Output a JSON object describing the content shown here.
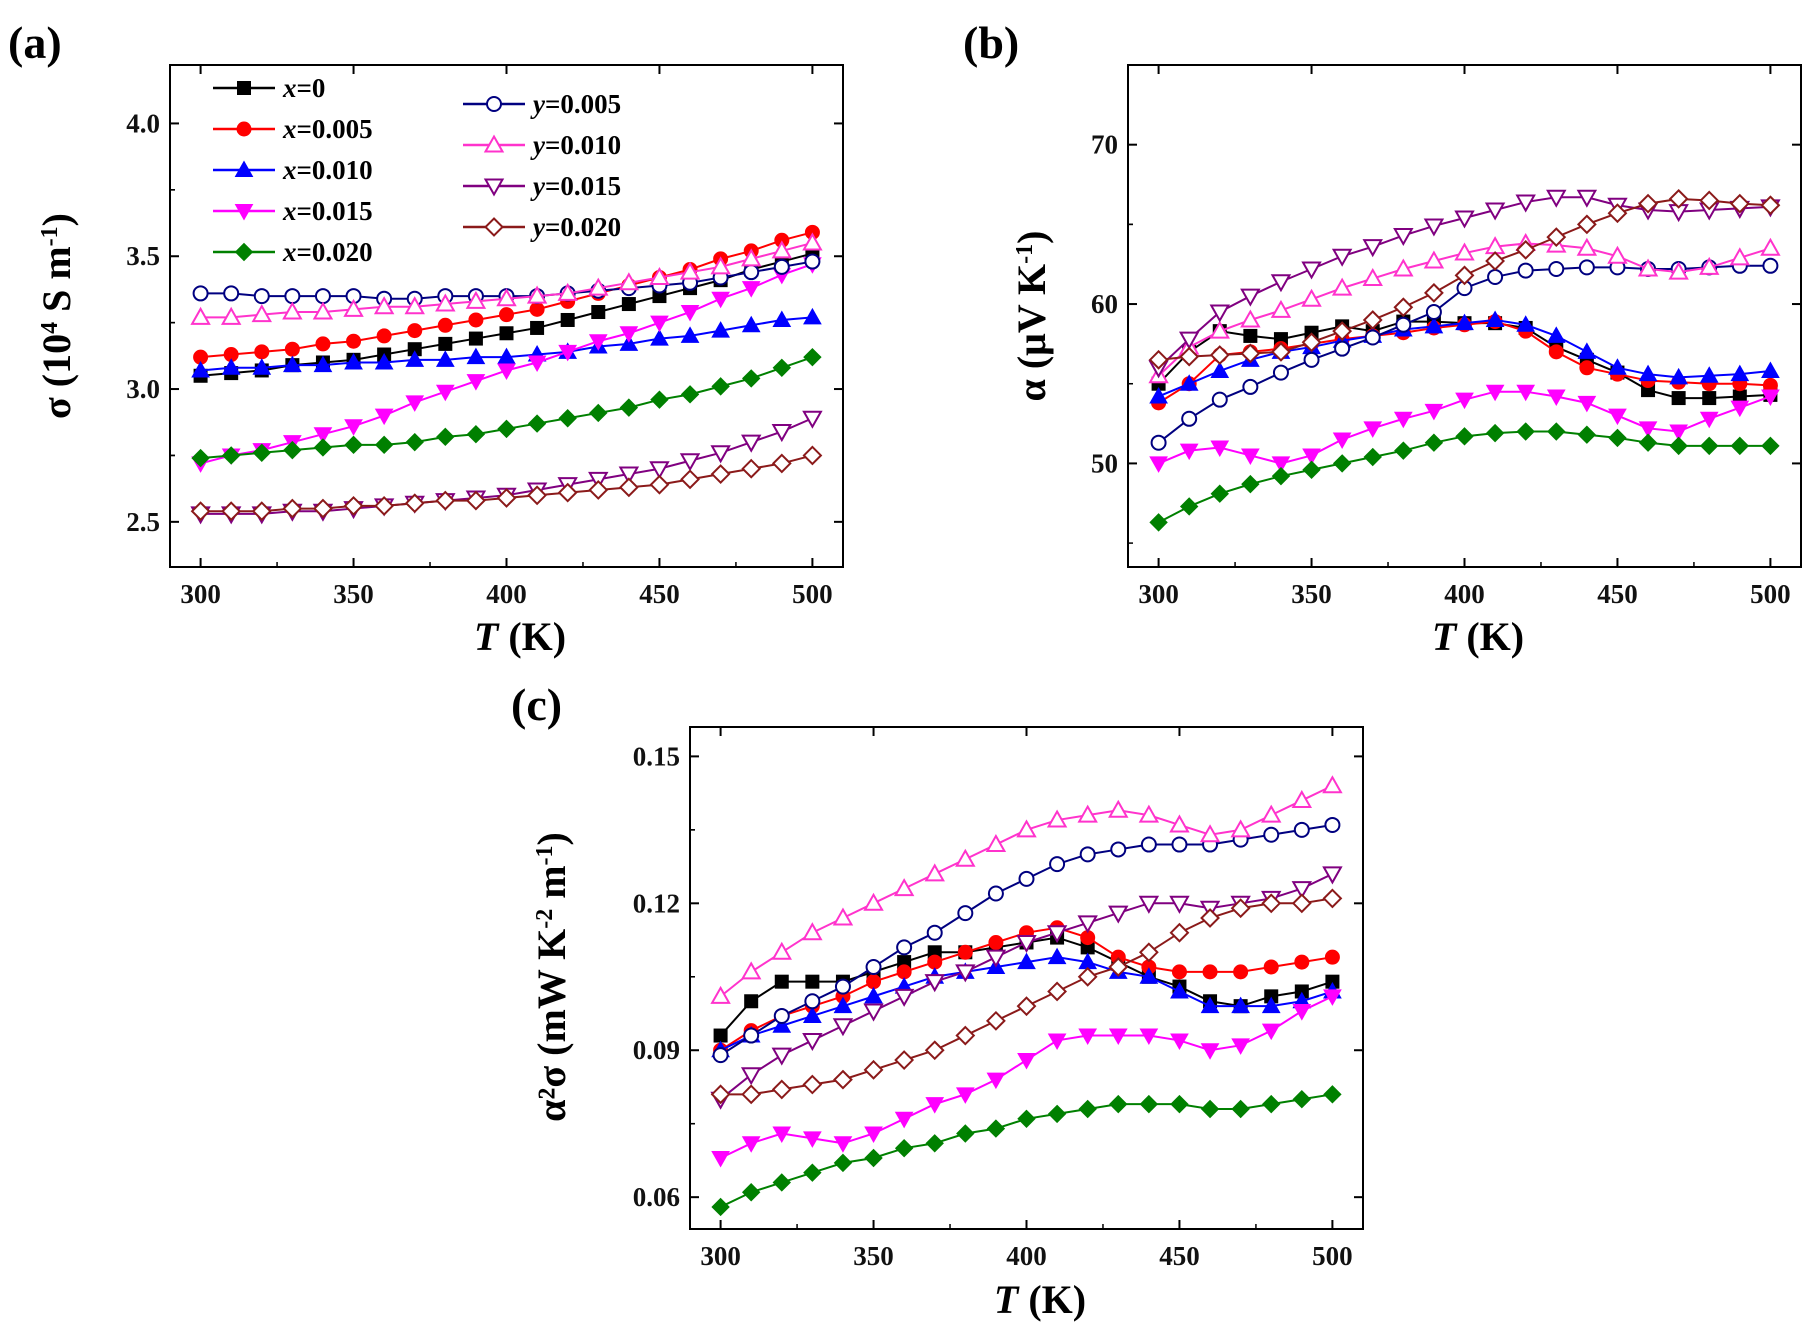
{
  "series_styles": [
    {
      "id": "x0",
      "label": "x=0",
      "var": "x",
      "num": "=0",
      "color": "#000000",
      "marker": "square",
      "filled": true
    },
    {
      "id": "x005",
      "label": "x=0.005",
      "var": "x",
      "num": "=0.005",
      "color": "#ff0000",
      "marker": "circle",
      "filled": true
    },
    {
      "id": "x010",
      "label": "x=0.010",
      "var": "x",
      "num": "=0.010",
      "color": "#0000ff",
      "marker": "triup",
      "filled": true
    },
    {
      "id": "x015",
      "label": "x=0.015",
      "var": "x",
      "num": "=0.015",
      "color": "#ff00ff",
      "marker": "tridown",
      "filled": true
    },
    {
      "id": "x020",
      "label": "x=0.020",
      "var": "x",
      "num": "=0.020",
      "color": "#008000",
      "marker": "diamond",
      "filled": true
    },
    {
      "id": "y005",
      "label": "y=0.005",
      "var": "y",
      "num": "=0.005",
      "color": "#000080",
      "marker": "circle",
      "filled": false
    },
    {
      "id": "y010",
      "label": "y=0.010",
      "var": "y",
      "num": "=0.010",
      "color": "#ff33cc",
      "marker": "triup",
      "filled": false
    },
    {
      "id": "y015",
      "label": "y=0.015",
      "var": "y",
      "num": "=0.015",
      "color": "#800080",
      "marker": "tridown",
      "filled": false
    },
    {
      "id": "y020",
      "label": "y=0.020",
      "var": "y",
      "num": "=0.020",
      "color": "#8b1a1a",
      "marker": "diamond",
      "filled": false
    }
  ],
  "chart_data": [
    {
      "panel": "(a)",
      "type": "line",
      "xlabel": "T (K)",
      "ylabel": "σ (10^4 S m^-1)",
      "xlim": [
        290,
        510
      ],
      "ylim": [
        2.33,
        4.22
      ],
      "xticks": [
        300,
        350,
        400,
        450,
        500
      ],
      "yticks": [
        2.5,
        3.0,
        3.5,
        4.0
      ],
      "ytick_labels": [
        "2.5",
        "3.0",
        "3.5",
        "4.0"
      ],
      "legend": "top-left",
      "x": [
        300,
        310,
        320,
        330,
        340,
        350,
        360,
        370,
        380,
        390,
        400,
        410,
        420,
        430,
        440,
        450,
        460,
        470,
        480,
        490,
        500
      ],
      "series": [
        {
          "id": "x0",
          "values": [
            3.05,
            3.06,
            3.07,
            3.09,
            3.1,
            3.11,
            3.13,
            3.15,
            3.17,
            3.19,
            3.21,
            3.23,
            3.26,
            3.29,
            3.32,
            3.35,
            3.38,
            3.41,
            3.45,
            3.48,
            3.51
          ]
        },
        {
          "id": "x005",
          "values": [
            3.12,
            3.13,
            3.14,
            3.15,
            3.17,
            3.18,
            3.2,
            3.22,
            3.24,
            3.26,
            3.28,
            3.3,
            3.33,
            3.36,
            3.39,
            3.42,
            3.45,
            3.49,
            3.52,
            3.56,
            3.59
          ]
        },
        {
          "id": "x010",
          "values": [
            3.07,
            3.08,
            3.08,
            3.09,
            3.09,
            3.1,
            3.1,
            3.11,
            3.11,
            3.12,
            3.12,
            3.13,
            3.14,
            3.16,
            3.17,
            3.19,
            3.2,
            3.22,
            3.24,
            3.26,
            3.27
          ]
        },
        {
          "id": "x015",
          "values": [
            2.72,
            2.75,
            2.77,
            2.8,
            2.83,
            2.86,
            2.9,
            2.95,
            2.99,
            3.03,
            3.07,
            3.1,
            3.14,
            3.18,
            3.21,
            3.25,
            3.29,
            3.34,
            3.38,
            3.43,
            3.47
          ]
        },
        {
          "id": "x020",
          "values": [
            2.74,
            2.75,
            2.76,
            2.77,
            2.78,
            2.79,
            2.79,
            2.8,
            2.82,
            2.83,
            2.85,
            2.87,
            2.89,
            2.91,
            2.93,
            2.96,
            2.98,
            3.01,
            3.04,
            3.08,
            3.12
          ]
        },
        {
          "id": "y005",
          "values": [
            3.36,
            3.36,
            3.35,
            3.35,
            3.35,
            3.35,
            3.34,
            3.34,
            3.35,
            3.35,
            3.35,
            3.35,
            3.36,
            3.37,
            3.38,
            3.39,
            3.4,
            3.42,
            3.44,
            3.46,
            3.48
          ]
        },
        {
          "id": "y010",
          "values": [
            3.27,
            3.27,
            3.28,
            3.29,
            3.29,
            3.3,
            3.31,
            3.31,
            3.32,
            3.33,
            3.34,
            3.35,
            3.36,
            3.38,
            3.4,
            3.42,
            3.44,
            3.46,
            3.49,
            3.52,
            3.55
          ]
        },
        {
          "id": "y015",
          "values": [
            2.53,
            2.53,
            2.53,
            2.54,
            2.54,
            2.55,
            2.56,
            2.57,
            2.58,
            2.59,
            2.6,
            2.62,
            2.64,
            2.66,
            2.68,
            2.7,
            2.73,
            2.76,
            2.8,
            2.84,
            2.89
          ]
        },
        {
          "id": "y020",
          "values": [
            2.54,
            2.54,
            2.54,
            2.55,
            2.55,
            2.56,
            2.56,
            2.57,
            2.58,
            2.58,
            2.59,
            2.6,
            2.61,
            2.62,
            2.63,
            2.64,
            2.66,
            2.68,
            2.7,
            2.72,
            2.75
          ]
        }
      ]
    },
    {
      "panel": "(b)",
      "type": "line",
      "xlabel": "T (K)",
      "ylabel": "α (μV K^-1)",
      "xlim": [
        290,
        510
      ],
      "ylim": [
        43.5,
        75
      ],
      "xticks": [
        300,
        350,
        400,
        450,
        500
      ],
      "yticks": [
        50,
        60,
        70
      ],
      "ytick_labels": [
        "50",
        "60",
        "70"
      ],
      "x": [
        300,
        310,
        320,
        330,
        340,
        350,
        360,
        370,
        380,
        390,
        400,
        410,
        420,
        430,
        440,
        450,
        460,
        470,
        480,
        490,
        500
      ],
      "series": [
        {
          "id": "x0",
          "values": [
            55.0,
            57.0,
            58.3,
            58.0,
            57.8,
            58.2,
            58.6,
            58.3,
            58.9,
            58.9,
            58.8,
            58.8,
            58.5,
            57.3,
            56.5,
            55.7,
            54.6,
            54.1,
            54.1,
            54.2,
            54.3
          ]
        },
        {
          "id": "x005",
          "values": [
            53.8,
            55.0,
            56.8,
            57.0,
            57.2,
            57.5,
            57.8,
            58.0,
            58.2,
            58.5,
            58.7,
            58.9,
            58.3,
            57.0,
            56.0,
            55.6,
            55.2,
            55.1,
            55.0,
            55.0,
            54.9
          ]
        },
        {
          "id": "x010",
          "values": [
            54.2,
            55.0,
            55.8,
            56.5,
            57.0,
            57.3,
            57.7,
            58.0,
            58.4,
            58.6,
            58.8,
            59.0,
            58.7,
            58.0,
            57.0,
            56.0,
            55.6,
            55.4,
            55.5,
            55.6,
            55.8
          ]
        },
        {
          "id": "x015",
          "values": [
            50.0,
            50.8,
            51.0,
            50.5,
            50.0,
            50.5,
            51.5,
            52.2,
            52.8,
            53.3,
            54.0,
            54.5,
            54.5,
            54.2,
            53.8,
            53.0,
            52.2,
            52.0,
            52.8,
            53.5,
            54.2
          ]
        },
        {
          "id": "x020",
          "values": [
            46.3,
            47.3,
            48.1,
            48.7,
            49.2,
            49.6,
            50.0,
            50.4,
            50.8,
            51.3,
            51.7,
            51.9,
            52.0,
            52.0,
            51.8,
            51.6,
            51.3,
            51.1,
            51.1,
            51.1,
            51.1
          ]
        },
        {
          "id": "y005",
          "values": [
            51.3,
            52.8,
            54.0,
            54.8,
            55.7,
            56.5,
            57.2,
            57.9,
            58.7,
            59.5,
            61.0,
            61.7,
            62.1,
            62.2,
            62.3,
            62.3,
            62.2,
            62.2,
            62.3,
            62.4,
            62.4
          ]
        },
        {
          "id": "y010",
          "values": [
            55.5,
            57.3,
            58.3,
            59.0,
            59.6,
            60.3,
            61.0,
            61.6,
            62.2,
            62.7,
            63.2,
            63.6,
            63.8,
            63.7,
            63.5,
            63.0,
            62.2,
            62.0,
            62.3,
            62.9,
            63.5
          ]
        },
        {
          "id": "y015",
          "values": [
            56.0,
            57.8,
            59.5,
            60.5,
            61.4,
            62.2,
            63.0,
            63.6,
            64.3,
            64.9,
            65.4,
            65.9,
            66.4,
            66.7,
            66.7,
            66.2,
            65.9,
            65.8,
            65.9,
            66.0,
            66.1
          ]
        },
        {
          "id": "y020",
          "values": [
            56.5,
            56.7,
            56.8,
            56.9,
            57.0,
            57.6,
            58.3,
            59.0,
            59.8,
            60.7,
            61.8,
            62.7,
            63.4,
            64.2,
            65.0,
            65.7,
            66.3,
            66.6,
            66.5,
            66.3,
            66.2
          ]
        }
      ]
    },
    {
      "panel": "(c)",
      "type": "line",
      "xlabel": "T (K)",
      "ylabel": "α²σ (mW K^-2 m^-1)",
      "xlim": [
        290,
        510
      ],
      "ylim": [
        0.0535,
        0.156
      ],
      "xticks": [
        300,
        350,
        400,
        450,
        500
      ],
      "yticks": [
        0.06,
        0.09,
        0.12,
        0.15
      ],
      "ytick_labels": [
        "0.06",
        "0.09",
        "0.12",
        "0.15"
      ],
      "x": [
        300,
        310,
        320,
        330,
        340,
        350,
        360,
        370,
        380,
        390,
        400,
        410,
        420,
        430,
        440,
        450,
        460,
        470,
        480,
        490,
        500
      ],
      "series": [
        {
          "id": "x0",
          "values": [
            0.093,
            0.1,
            0.104,
            0.104,
            0.104,
            0.106,
            0.108,
            0.11,
            0.11,
            0.111,
            0.112,
            0.113,
            0.111,
            0.108,
            0.105,
            0.103,
            0.1,
            0.099,
            0.101,
            0.102,
            0.104
          ]
        },
        {
          "id": "x005",
          "values": [
            0.09,
            0.094,
            0.097,
            0.099,
            0.101,
            0.104,
            0.106,
            0.108,
            0.11,
            0.112,
            0.114,
            0.115,
            0.113,
            0.109,
            0.107,
            0.106,
            0.106,
            0.106,
            0.107,
            0.108,
            0.109
          ]
        },
        {
          "id": "x010",
          "values": [
            0.09,
            0.093,
            0.095,
            0.097,
            0.099,
            0.101,
            0.103,
            0.105,
            0.106,
            0.107,
            0.108,
            0.109,
            0.108,
            0.106,
            0.105,
            0.102,
            0.099,
            0.099,
            0.099,
            0.1,
            0.102
          ]
        },
        {
          "id": "x015",
          "values": [
            0.068,
            0.071,
            0.073,
            0.072,
            0.071,
            0.073,
            0.076,
            0.079,
            0.081,
            0.084,
            0.088,
            0.092,
            0.093,
            0.093,
            0.093,
            0.092,
            0.09,
            0.091,
            0.094,
            0.098,
            0.101
          ]
        },
        {
          "id": "x020",
          "values": [
            0.058,
            0.061,
            0.063,
            0.065,
            0.067,
            0.068,
            0.07,
            0.071,
            0.073,
            0.074,
            0.076,
            0.077,
            0.078,
            0.079,
            0.079,
            0.079,
            0.078,
            0.078,
            0.079,
            0.08,
            0.081
          ]
        },
        {
          "id": "y005",
          "values": [
            0.089,
            0.093,
            0.097,
            0.1,
            0.103,
            0.107,
            0.111,
            0.114,
            0.118,
            0.122,
            0.125,
            0.128,
            0.13,
            0.131,
            0.132,
            0.132,
            0.132,
            0.133,
            0.134,
            0.135,
            0.136
          ]
        },
        {
          "id": "y010",
          "values": [
            0.101,
            0.106,
            0.11,
            0.114,
            0.117,
            0.12,
            0.123,
            0.126,
            0.129,
            0.132,
            0.135,
            0.137,
            0.138,
            0.139,
            0.138,
            0.136,
            0.134,
            0.135,
            0.138,
            0.141,
            0.144
          ]
        },
        {
          "id": "y015",
          "values": [
            0.08,
            0.085,
            0.089,
            0.092,
            0.095,
            0.098,
            0.101,
            0.104,
            0.106,
            0.109,
            0.112,
            0.114,
            0.116,
            0.118,
            0.12,
            0.12,
            0.119,
            0.12,
            0.121,
            0.123,
            0.126
          ]
        },
        {
          "id": "y020",
          "values": [
            0.081,
            0.081,
            0.082,
            0.083,
            0.084,
            0.086,
            0.088,
            0.09,
            0.093,
            0.096,
            0.099,
            0.102,
            0.105,
            0.107,
            0.11,
            0.114,
            0.117,
            0.119,
            0.12,
            0.12,
            0.121
          ]
        }
      ]
    }
  ]
}
